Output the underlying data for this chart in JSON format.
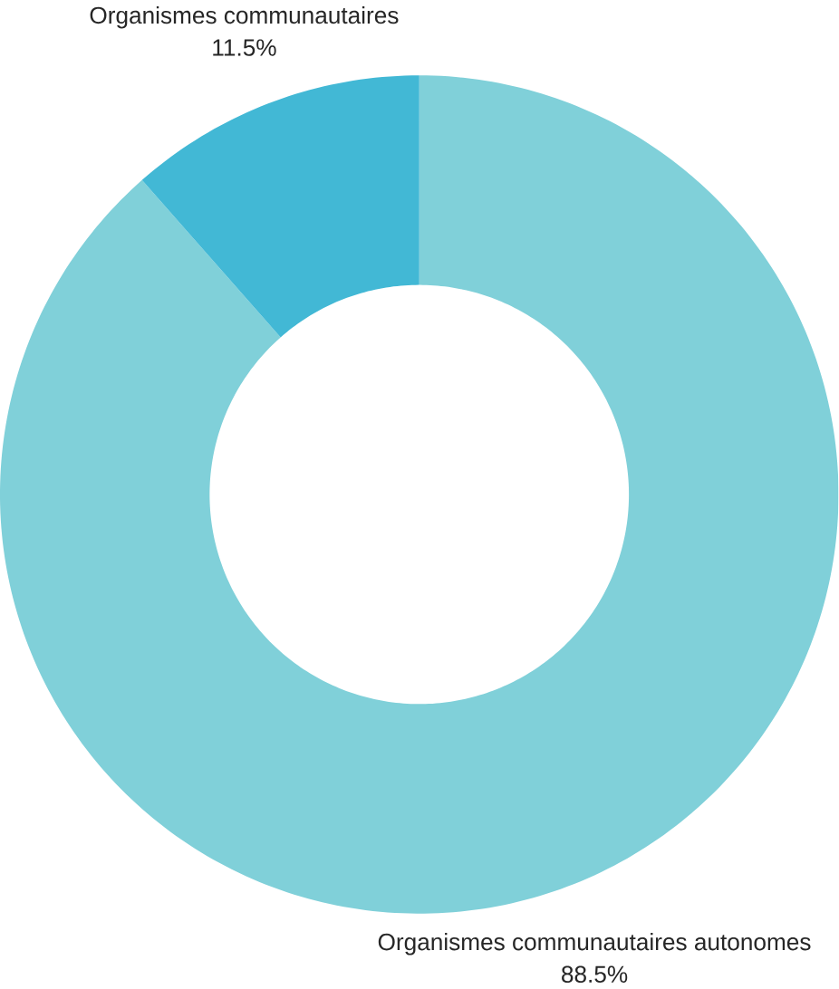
{
  "chart_data": {
    "type": "donut",
    "categories": [
      "Organismes communautaires autonomes",
      "Organismes communautaires"
    ],
    "values": [
      88.5,
      11.5
    ],
    "colors": [
      "#80d0d9",
      "#42b8d5"
    ],
    "value_labels": [
      "88.5%",
      "11.5%"
    ]
  }
}
